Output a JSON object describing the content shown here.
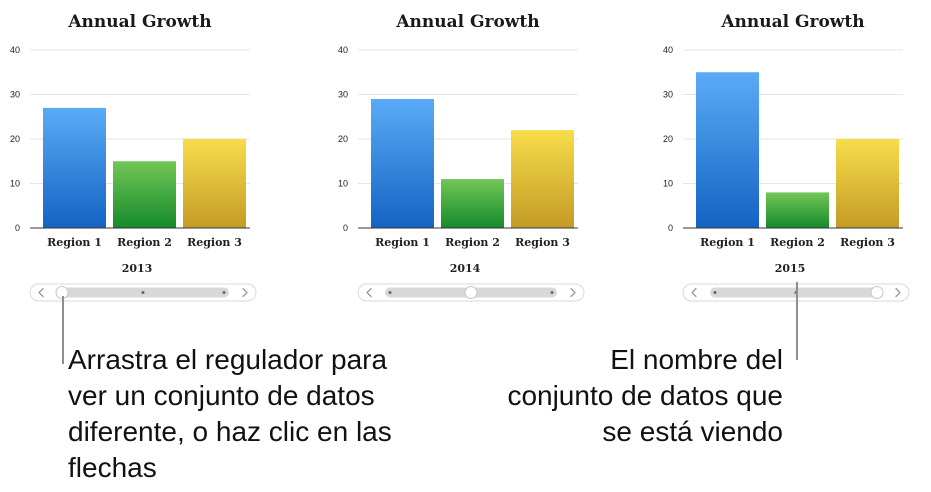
{
  "chart_data": [
    {
      "type": "bar",
      "title": "Annual Growth",
      "dataset_name": "2013",
      "categories": [
        "Region 1",
        "Region 2",
        "Region 3"
      ],
      "values": [
        27,
        15,
        20
      ],
      "ylim": [
        0,
        40
      ],
      "yticks": [
        "0",
        "10",
        "20",
        "30",
        "40"
      ],
      "grid": true,
      "slider": {
        "position": 0,
        "steps": 3
      }
    },
    {
      "type": "bar",
      "title": "Annual Growth",
      "dataset_name": "2014",
      "categories": [
        "Region 1",
        "Region 2",
        "Region 3"
      ],
      "values": [
        29,
        11,
        22
      ],
      "ylim": [
        0,
        40
      ],
      "yticks": [
        "0",
        "10",
        "20",
        "30",
        "40"
      ],
      "grid": true,
      "slider": {
        "position": 1,
        "steps": 3
      }
    },
    {
      "type": "bar",
      "title": "Annual Growth",
      "dataset_name": "2015",
      "categories": [
        "Region 1",
        "Region 2",
        "Region 3"
      ],
      "values": [
        35,
        8,
        20
      ],
      "ylim": [
        0,
        40
      ],
      "yticks": [
        "0",
        "10",
        "20",
        "30",
        "40"
      ],
      "grid": true,
      "slider": {
        "position": 2,
        "steps": 3
      }
    }
  ],
  "colors": {
    "region_1": [
      "#5aabf6",
      "#1463c4"
    ],
    "region_2": [
      "#72c756",
      "#158a2c"
    ],
    "region_3": [
      "#f7dd4a",
      "#c49b25"
    ]
  },
  "icons": [
    "chevron-left-icon",
    "chevron-right-icon"
  ],
  "callouts": {
    "left": "Arrastra el regulador para ver un conjunto de datos diferente, o haz clic en las flechas",
    "right": "El nombre del conjunto de datos que se está viendo"
  }
}
